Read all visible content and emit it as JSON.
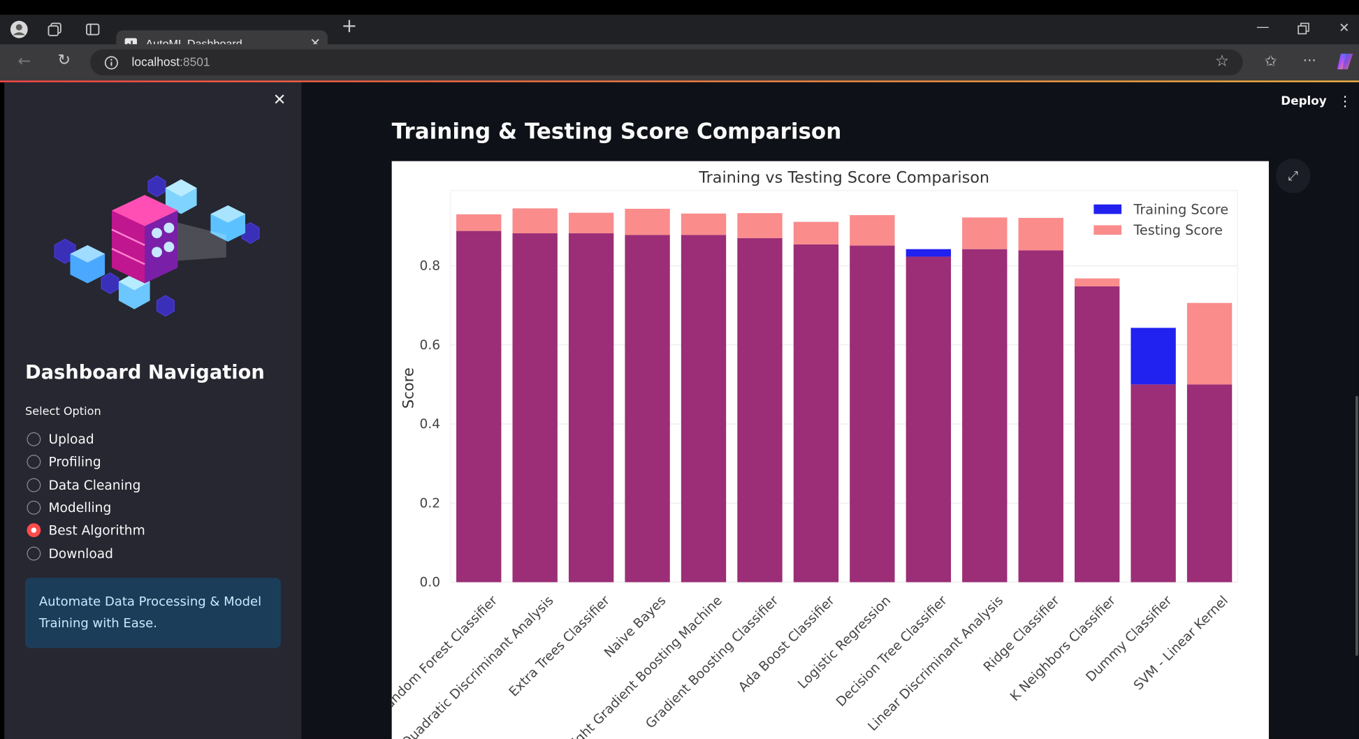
{
  "browser": {
    "tab_title": "AutoML Dashboard",
    "url_host": "localhost",
    "url_port": ":8501",
    "icons": [
      "profile-icon",
      "collections-icon",
      "tab-actions-icon",
      "close-icon",
      "new-tab-icon",
      "back-icon",
      "reload-icon",
      "info-icon",
      "favorite-star-icon",
      "favorites-icon",
      "more-icon",
      "copilot-icon",
      "minimize-icon",
      "restore-icon"
    ]
  },
  "sidebar": {
    "title": "Dashboard Navigation",
    "select_label": "Select Option",
    "options": [
      {
        "label": "Upload",
        "selected": false
      },
      {
        "label": "Profiling",
        "selected": false
      },
      {
        "label": "Data Cleaning",
        "selected": false
      },
      {
        "label": "Modelling",
        "selected": false
      },
      {
        "label": "Best Algorithm",
        "selected": true
      },
      {
        "label": "Download",
        "selected": false
      }
    ],
    "info": "Automate Data Processing & Model Training with Ease."
  },
  "header": {
    "deploy_label": "Deploy"
  },
  "main": {
    "section_title": "Training & Testing Score Comparison"
  },
  "colors": {
    "training": "#2121f0",
    "testing": "#fa8c8c",
    "overlap": "#9b2e76",
    "accent": "#ff4b4b"
  },
  "chart_data": {
    "type": "bar",
    "title": "Training vs Testing Score Comparison",
    "xlabel": "",
    "ylabel": "Score",
    "ylim": [
      0,
      0.99
    ],
    "yticks": [
      "0.0",
      "0.2",
      "0.4",
      "0.6",
      "0.8"
    ],
    "grid": true,
    "legend_position": "top-right",
    "categories": [
      "Random Forest Classifier",
      "Quadratic Discriminant Analysis",
      "Extra Trees Classifier",
      "Naive Bayes",
      "Light Gradient Boosting Machine",
      "Gradient Boosting Classifier",
      "Ada Boost Classifier",
      "Logistic Regression",
      "Decision Tree Classifier",
      "Linear Discriminant Analysis",
      "Ridge Classifier",
      "K Neighbors Classifier",
      "Dummy Classifier",
      "SVM - Linear Kernel"
    ],
    "series": [
      {
        "name": "Training Score",
        "values": [
          0.888,
          0.882,
          0.882,
          0.878,
          0.878,
          0.87,
          0.854,
          0.851,
          0.842,
          0.842,
          0.839,
          0.748,
          0.643,
          0.5
        ]
      },
      {
        "name": "Testing Score",
        "values": [
          0.93,
          0.945,
          0.934,
          0.944,
          0.932,
          0.933,
          0.911,
          0.928,
          0.823,
          0.922,
          0.921,
          0.768,
          0.5,
          0.706
        ]
      }
    ]
  }
}
